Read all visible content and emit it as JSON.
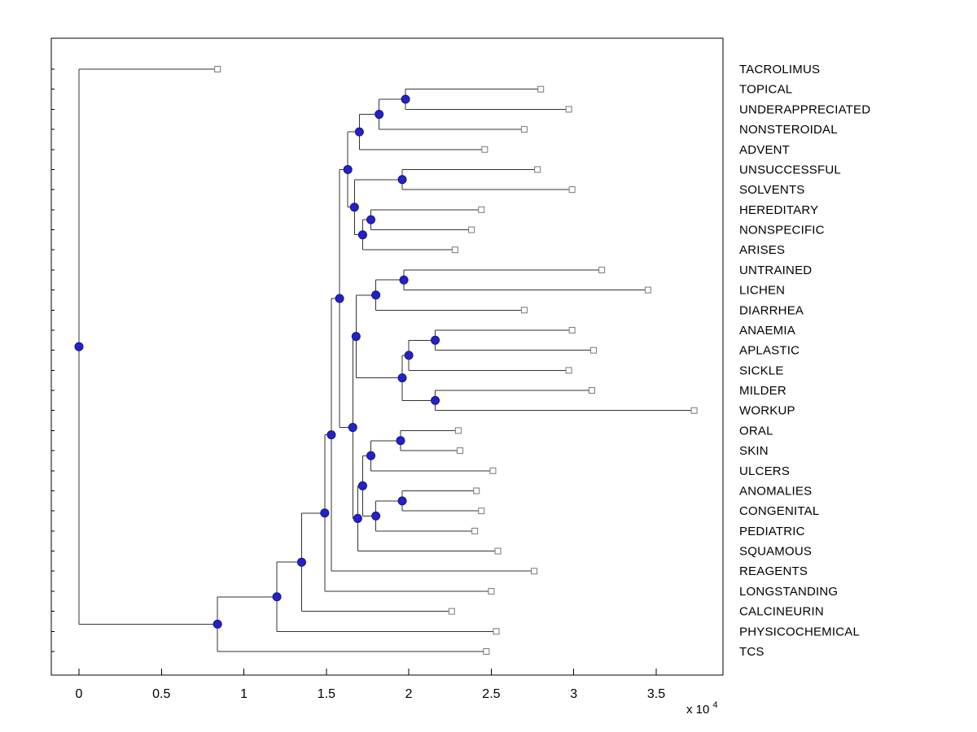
{
  "chart_data": {
    "type": "dendrogram",
    "title": "",
    "xlabel": "",
    "ylabel": "",
    "x_axis": {
      "tick_values": [
        0,
        5000,
        10000,
        15000,
        20000,
        25000,
        30000,
        35000
      ],
      "tick_labels": [
        "0",
        "0.5",
        "1",
        "1.5",
        "2",
        "2.5",
        "3",
        "3.5"
      ],
      "multiplier_base": "x 10",
      "multiplier_exponent": "4",
      "xlim": [
        -1700,
        39000
      ]
    },
    "leaf_labels": [
      "TACROLIMUS",
      "TOPICAL",
      "UNDERAPPRECIATED",
      "NONSTEROIDAL",
      "ADVENT",
      "UNSUCCESSFUL",
      "SOLVENTS",
      "HEREDITARY",
      "NONSPECIFIC",
      "ARISES",
      "UNTRAINED",
      "LICHEN",
      "DIARRHEA",
      "ANAEMIA",
      "APLASTIC",
      "SICKLE",
      "MILDER",
      "WORKUP",
      "ORAL",
      "SKIN",
      "ULCERS",
      "ANOMALIES",
      "CONGENITAL",
      "PEDIATRIC",
      "SQUAMOUS",
      "REAGENTS",
      "LONGSTANDING",
      "CALCINEURIN",
      "PHYSICOCHEMICAL",
      "TCS"
    ],
    "tree": {
      "x": 0,
      "children": [
        {
          "leaf": "TACROLIMUS",
          "tip": 8400
        },
        {
          "x": 8400,
          "children": [
            {
              "x": 12000,
              "children": [
                {
                  "x": 13500,
                  "children": [
                    {
                      "x": 14900,
                      "children": [
                        {
                          "x": 15300,
                          "children": [
                            {
                              "x": 15800,
                              "children": [
                                {
                                  "x": 16300,
                                  "children": [
                                    {
                                      "x": 17000,
                                      "children": [
                                        {
                                          "x": 18200,
                                          "children": [
                                            {
                                              "x": 19800,
                                              "children": [
                                                {
                                                  "leaf": "TOPICAL",
                                                  "tip": 28000
                                                },
                                                {
                                                  "leaf": "UNDERAPPRECIATED",
                                                  "tip": 29700
                                                }
                                              ]
                                            },
                                            {
                                              "leaf": "NONSTEROIDAL",
                                              "tip": 27000
                                            }
                                          ]
                                        },
                                        {
                                          "leaf": "ADVENT",
                                          "tip": 24600
                                        }
                                      ]
                                    },
                                    {
                                      "x": 16700,
                                      "children": [
                                        {
                                          "x": 19600,
                                          "children": [
                                            {
                                              "leaf": "UNSUCCESSFUL",
                                              "tip": 27800
                                            },
                                            {
                                              "leaf": "SOLVENTS",
                                              "tip": 29900
                                            }
                                          ]
                                        },
                                        {
                                          "x": 17200,
                                          "children": [
                                            {
                                              "x": 17700,
                                              "children": [
                                                {
                                                  "leaf": "HEREDITARY",
                                                  "tip": 24400
                                                },
                                                {
                                                  "leaf": "NONSPECIFIC",
                                                  "tip": 23800
                                                }
                                              ]
                                            },
                                            {
                                              "leaf": "ARISES",
                                              "tip": 22800
                                            }
                                          ]
                                        }
                                      ]
                                    }
                                  ]
                                },
                                {
                                  "x": 16600,
                                  "children": [
                                    {
                                      "x": 16800,
                                      "children": [
                                        {
                                          "x": 18000,
                                          "children": [
                                            {
                                              "x": 19700,
                                              "children": [
                                                {
                                                  "leaf": "UNTRAINED",
                                                  "tip": 31700
                                                },
                                                {
                                                  "leaf": "LICHEN",
                                                  "tip": 34500
                                                }
                                              ]
                                            },
                                            {
                                              "leaf": "DIARRHEA",
                                              "tip": 27000
                                            }
                                          ]
                                        },
                                        {
                                          "x": 19600,
                                          "children": [
                                            {
                                              "x": 20000,
                                              "children": [
                                                {
                                                  "x": 21600,
                                                  "children": [
                                                    {
                                                      "leaf": "ANAEMIA",
                                                      "tip": 29900
                                                    },
                                                    {
                                                      "leaf": "APLASTIC",
                                                      "tip": 31200
                                                    }
                                                  ]
                                                },
                                                {
                                                  "leaf": "SICKLE",
                                                  "tip": 29700
                                                }
                                              ]
                                            },
                                            {
                                              "x": 21600,
                                              "children": [
                                                {
                                                  "leaf": "MILDER",
                                                  "tip": 31100
                                                },
                                                {
                                                  "leaf": "WORKUP",
                                                  "tip": 37300
                                                }
                                              ]
                                            }
                                          ]
                                        }
                                      ]
                                    },
                                    {
                                      "x": 16900,
                                      "children": [
                                        {
                                          "x": 17200,
                                          "children": [
                                            {
                                              "x": 17700,
                                              "children": [
                                                {
                                                  "x": 19500,
                                                  "children": [
                                                    {
                                                      "leaf": "ORAL",
                                                      "tip": 23000
                                                    },
                                                    {
                                                      "leaf": "SKIN",
                                                      "tip": 23100
                                                    }
                                                  ]
                                                },
                                                {
                                                  "leaf": "ULCERS",
                                                  "tip": 25100
                                                }
                                              ]
                                            },
                                            {
                                              "x": 18000,
                                              "children": [
                                                {
                                                  "x": 19600,
                                                  "children": [
                                                    {
                                                      "leaf": "ANOMALIES",
                                                      "tip": 24100
                                                    },
                                                    {
                                                      "leaf": "CONGENITAL",
                                                      "tip": 24400
                                                    }
                                                  ]
                                                },
                                                {
                                                  "leaf": "PEDIATRIC",
                                                  "tip": 24000
                                                }
                                              ]
                                            }
                                          ]
                                        },
                                        {
                                          "leaf": "SQUAMOUS",
                                          "tip": 25400
                                        }
                                      ]
                                    }
                                  ]
                                }
                              ]
                            },
                            {
                              "leaf": "REAGENTS",
                              "tip": 27600
                            }
                          ]
                        },
                        {
                          "leaf": "LONGSTANDING",
                          "tip": 25000
                        }
                      ]
                    },
                    {
                      "leaf": "CALCINEURIN",
                      "tip": 22600
                    }
                  ]
                },
                {
                  "leaf": "PHYSICOCHEMICAL",
                  "tip": 25300
                }
              ]
            },
            {
              "leaf": "TCS",
              "tip": 24700
            }
          ]
        }
      ]
    },
    "colors": {
      "branch": "#333333",
      "node_fill": "#2222cc",
      "node_edge": "#151580",
      "leaf_fill": "#fdfdfd",
      "leaf_edge": "#7a7a7a",
      "axis": "#000000",
      "background": "#ffffff"
    },
    "legend": null,
    "grid": false
  }
}
